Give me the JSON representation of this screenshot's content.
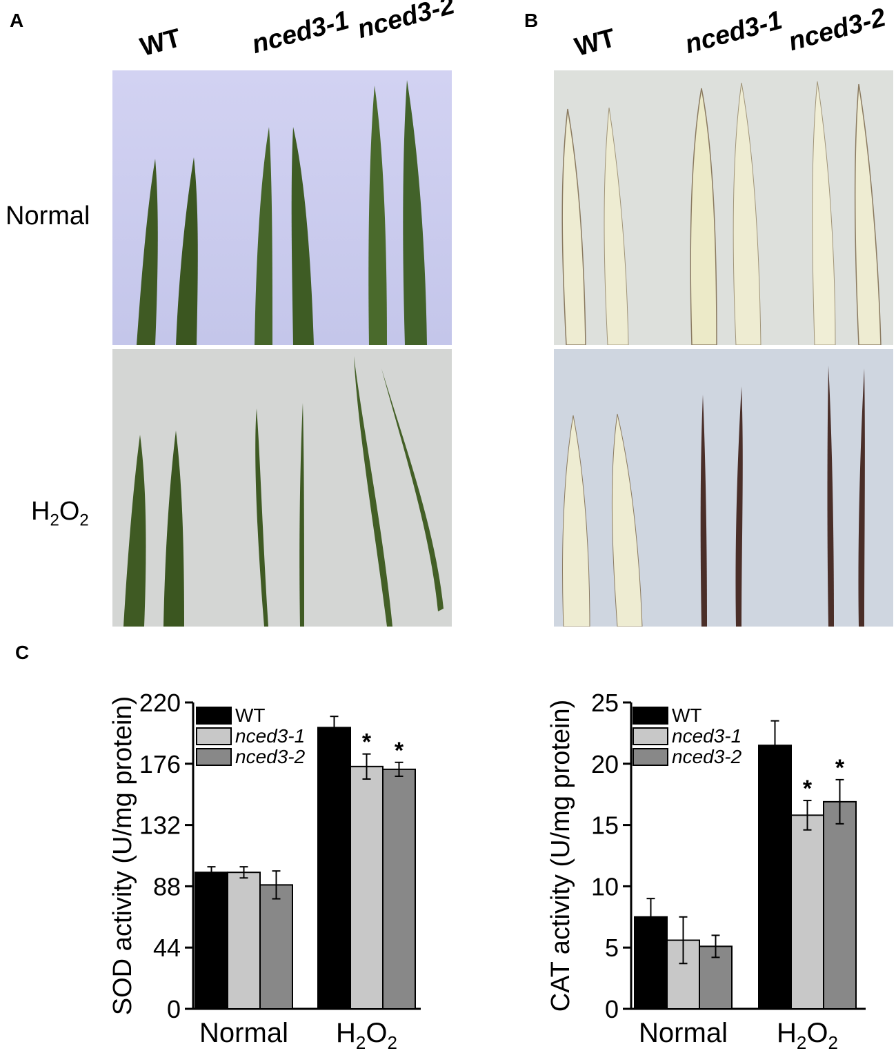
{
  "panels": {
    "a": "A",
    "b": "B",
    "c": "C"
  },
  "genotypes": [
    "WT",
    "nced3-1",
    "nced3-2"
  ],
  "conditions": {
    "normal": "Normal",
    "h2o2_base": "H",
    "h2o2_sub1": "2",
    "h2o2_mid": "O",
    "h2o2_sub2": "2"
  },
  "colors": {
    "wt": "#000000",
    "nced3_1": "#c8c8c8",
    "nced3_2": "#888888",
    "photo_bg_top_a": "#ccccf0",
    "photo_bg_bottom": "#d4d6d4",
    "photo_bg_top_b": "#dde0dc",
    "photo_bg_bottom_b": "#cfd6e0",
    "leaf_green": "#3f5a23",
    "leaf_bleached": "#eeecd2",
    "leaf_brown": "#4a2e28"
  },
  "chart_data": [
    {
      "type": "bar",
      "categories": [
        "Normal",
        "H2O2"
      ],
      "series": [
        {
          "name": "WT",
          "values": [
            98,
            202
          ],
          "errors": [
            4,
            8
          ]
        },
        {
          "name": "nced3-1",
          "values": [
            98,
            174
          ],
          "errors": [
            4,
            9
          ]
        },
        {
          "name": "nced3-2",
          "values": [
            89,
            172
          ],
          "errors": [
            10,
            5
          ]
        }
      ],
      "significance": [
        [],
        [
          "",
          "*",
          "*"
        ]
      ],
      "ylabel": "SOD activity (U/mg protein)",
      "yticks": [
        "0",
        "44",
        "88",
        "132",
        "176",
        "220"
      ],
      "ylim": [
        0,
        220
      ],
      "legend": "top-left"
    },
    {
      "type": "bar",
      "categories": [
        "Normal",
        "H2O2"
      ],
      "series": [
        {
          "name": "WT",
          "values": [
            7.5,
            21.5
          ],
          "errors": [
            1.5,
            2
          ]
        },
        {
          "name": "nced3-1",
          "values": [
            5.6,
            15.8
          ],
          "errors": [
            1.9,
            1.2
          ]
        },
        {
          "name": "nced3-2",
          "values": [
            5.1,
            16.9
          ],
          "errors": [
            0.9,
            1.8
          ]
        }
      ],
      "significance": [
        [],
        [
          "",
          "*",
          "*"
        ]
      ],
      "ylabel": "CAT activity (U/mg protein)",
      "yticks": [
        "0",
        "5",
        "10",
        "15",
        "20",
        "25"
      ],
      "ylim": [
        0,
        25
      ],
      "legend": "top-left"
    }
  ]
}
